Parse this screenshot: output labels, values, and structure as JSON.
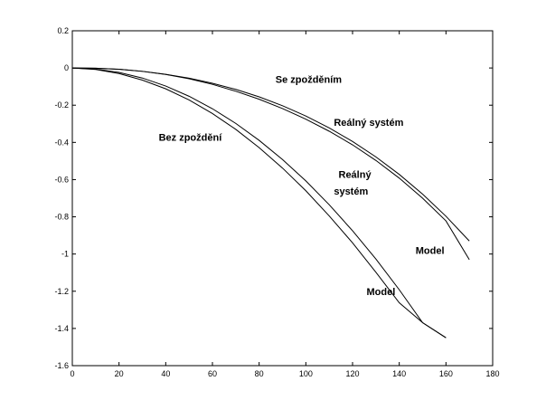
{
  "chart_data": {
    "type": "line",
    "title": "",
    "xlabel": "",
    "ylabel": "",
    "xlim": [
      0,
      180
    ],
    "ylim": [
      -1.6,
      0.2
    ],
    "grid": false,
    "xticks": [
      0,
      20,
      40,
      60,
      80,
      100,
      120,
      140,
      160,
      180
    ],
    "yticks": [
      0.2,
      0,
      -0.2,
      -0.4,
      -0.6,
      -0.8,
      -1,
      -1.2,
      -1.4,
      -1.6
    ],
    "series": [
      {
        "x": [
          0,
          10,
          20,
          30,
          40,
          50,
          60,
          70,
          80,
          90,
          100,
          110,
          120,
          130,
          140,
          150,
          160,
          170
        ],
        "y": [
          0,
          -0.001,
          -0.007,
          -0.018,
          -0.034,
          -0.055,
          -0.082,
          -0.115,
          -0.155,
          -0.203,
          -0.258,
          -0.322,
          -0.395,
          -0.478,
          -0.572,
          -0.678,
          -0.797,
          -0.93
        ]
      },
      {
        "x": [
          0,
          10,
          20,
          30,
          40,
          50,
          60,
          70,
          80,
          90,
          100,
          110,
          120,
          130,
          140,
          150,
          160,
          170
        ],
        "y": [
          0,
          -0.001,
          -0.007,
          -0.018,
          -0.035,
          -0.058,
          -0.088,
          -0.125,
          -0.168,
          -0.218,
          -0.275,
          -0.34,
          -0.413,
          -0.497,
          -0.592,
          -0.7,
          -0.822,
          -1.03
        ]
      },
      {
        "x": [
          0,
          10,
          20,
          30,
          40,
          50,
          60,
          70,
          80,
          90,
          100,
          110,
          120,
          130,
          140,
          150,
          160
        ],
        "y": [
          0,
          -0.006,
          -0.024,
          -0.054,
          -0.097,
          -0.152,
          -0.219,
          -0.298,
          -0.389,
          -0.492,
          -0.607,
          -0.735,
          -0.875,
          -1.027,
          -1.192,
          -1.369,
          -1.45
        ]
      },
      {
        "x": [
          0,
          10,
          20,
          30,
          40,
          50,
          60,
          70,
          80,
          90,
          100,
          110,
          120,
          130,
          140,
          150,
          160
        ],
        "y": [
          0,
          -0.008,
          -0.03,
          -0.065,
          -0.112,
          -0.172,
          -0.245,
          -0.33,
          -0.428,
          -0.538,
          -0.66,
          -0.795,
          -0.94,
          -1.098,
          -1.262,
          -1.369,
          -1.45
        ]
      }
    ],
    "annotations": [
      {
        "text": "Se zpožděním",
        "x": 87,
        "y": -0.08
      },
      {
        "text": "Reálný systém",
        "x": 112,
        "y": -0.31
      },
      {
        "text": "Bez zpoždění",
        "x": 37,
        "y": -0.39
      },
      {
        "text": "Reálný",
        "x": 114,
        "y": -0.59
      },
      {
        "text": "systém",
        "x": 112,
        "y": -0.68
      },
      {
        "text": "Model",
        "x": 147,
        "y": -1.0
      },
      {
        "text": "Model",
        "x": 126,
        "y": -1.22
      }
    ]
  }
}
